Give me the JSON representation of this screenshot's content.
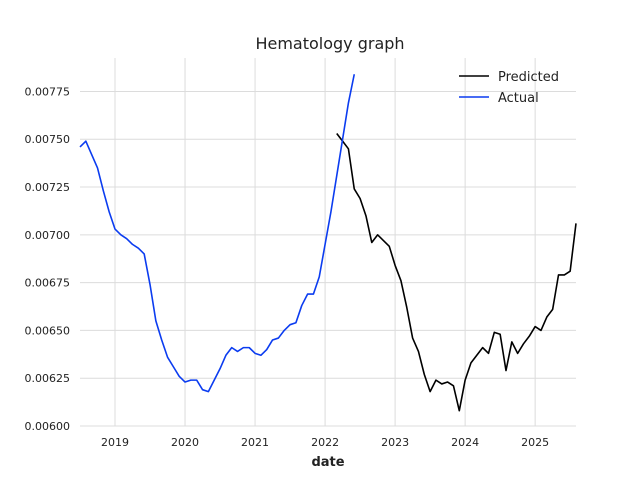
{
  "chart_data": {
    "type": "line",
    "title": "Hematology graph",
    "xlabel": "date",
    "ylabel": "",
    "xlim": [
      "2018-07-01",
      "2025-08-01"
    ],
    "ylim": [
      0.006,
      0.007925
    ],
    "grid": true,
    "legend_position": "top-right",
    "x_tick_labels": [
      "2019",
      "2020",
      "2021",
      "2022",
      "2023",
      "2024",
      "2025"
    ],
    "y_tick_labels": [
      "0.00600",
      "0.00625",
      "0.00650",
      "0.00675",
      "0.00700",
      "0.00725",
      "0.00750",
      "0.00775"
    ],
    "series": [
      {
        "name": "Predicted",
        "color": "#000000",
        "x": [
          "2022-03",
          "2022-04",
          "2022-05",
          "2022-06",
          "2022-07",
          "2022-08",
          "2022-09",
          "2022-10",
          "2022-11",
          "2022-12",
          "2023-01",
          "2023-02",
          "2023-03",
          "2023-04",
          "2023-05",
          "2023-06",
          "2023-07",
          "2023-08",
          "2023-09",
          "2023-10",
          "2023-11",
          "2023-12",
          "2024-01",
          "2024-02",
          "2024-03",
          "2024-04",
          "2024-05",
          "2024-06",
          "2024-07",
          "2024-08",
          "2024-09",
          "2024-10",
          "2024-11",
          "2024-12",
          "2025-01",
          "2025-02",
          "2025-03",
          "2025-04",
          "2025-05",
          "2025-06",
          "2025-07",
          "2025-08"
        ],
        "values": [
          0.00753,
          0.00749,
          0.00745,
          0.00724,
          0.00719,
          0.0071,
          0.00696,
          0.007,
          0.00697,
          0.00694,
          0.00684,
          0.00676,
          0.00662,
          0.00646,
          0.00639,
          0.00627,
          0.00618,
          0.00624,
          0.00622,
          0.00623,
          0.00621,
          0.00608,
          0.00624,
          0.00633,
          0.00637,
          0.00641,
          0.00638,
          0.00649,
          0.00648,
          0.00629,
          0.00644,
          0.00638,
          0.00643,
          0.00647,
          0.00652,
          0.0065,
          0.00657,
          0.00661,
          0.00679,
          0.00679,
          0.00681,
          0.00706
        ]
      },
      {
        "name": "Actual",
        "color": "#0b3cf0",
        "x": [
          "2018-07",
          "2018-08",
          "2018-09",
          "2018-10",
          "2018-11",
          "2018-12",
          "2019-01",
          "2019-02",
          "2019-03",
          "2019-04",
          "2019-05",
          "2019-06",
          "2019-07",
          "2019-08",
          "2019-09",
          "2019-10",
          "2019-11",
          "2019-12",
          "2020-01",
          "2020-02",
          "2020-03",
          "2020-04",
          "2020-05",
          "2020-06",
          "2020-07",
          "2020-08",
          "2020-09",
          "2020-10",
          "2020-11",
          "2020-12",
          "2021-01",
          "2021-02",
          "2021-03",
          "2021-04",
          "2021-05",
          "2021-06",
          "2021-07",
          "2021-08",
          "2021-09",
          "2021-10",
          "2021-11",
          "2021-12",
          "2022-01",
          "2022-02",
          "2022-03",
          "2022-04",
          "2022-05",
          "2022-06",
          "2022-07"
        ],
        "values": [
          0.00746,
          0.00749,
          0.00742,
          0.00735,
          0.00723,
          0.00712,
          0.00703,
          0.007,
          0.00698,
          0.00695,
          0.00693,
          0.0069,
          0.00674,
          0.00655,
          0.00645,
          0.00636,
          0.00631,
          0.00626,
          0.00623,
          0.00624,
          0.00624,
          0.00619,
          0.00618,
          0.00624,
          0.0063,
          0.00637,
          0.00641,
          0.00639,
          0.00641,
          0.00641,
          0.00638,
          0.00637,
          0.0064,
          0.00645,
          0.00646,
          0.0065,
          0.00653,
          0.00654,
          0.00663,
          0.00669,
          0.00669,
          0.00678,
          0.00695,
          0.00712,
          0.00731,
          0.0075,
          0.00769,
          0.00784,
          null
        ]
      }
    ]
  }
}
